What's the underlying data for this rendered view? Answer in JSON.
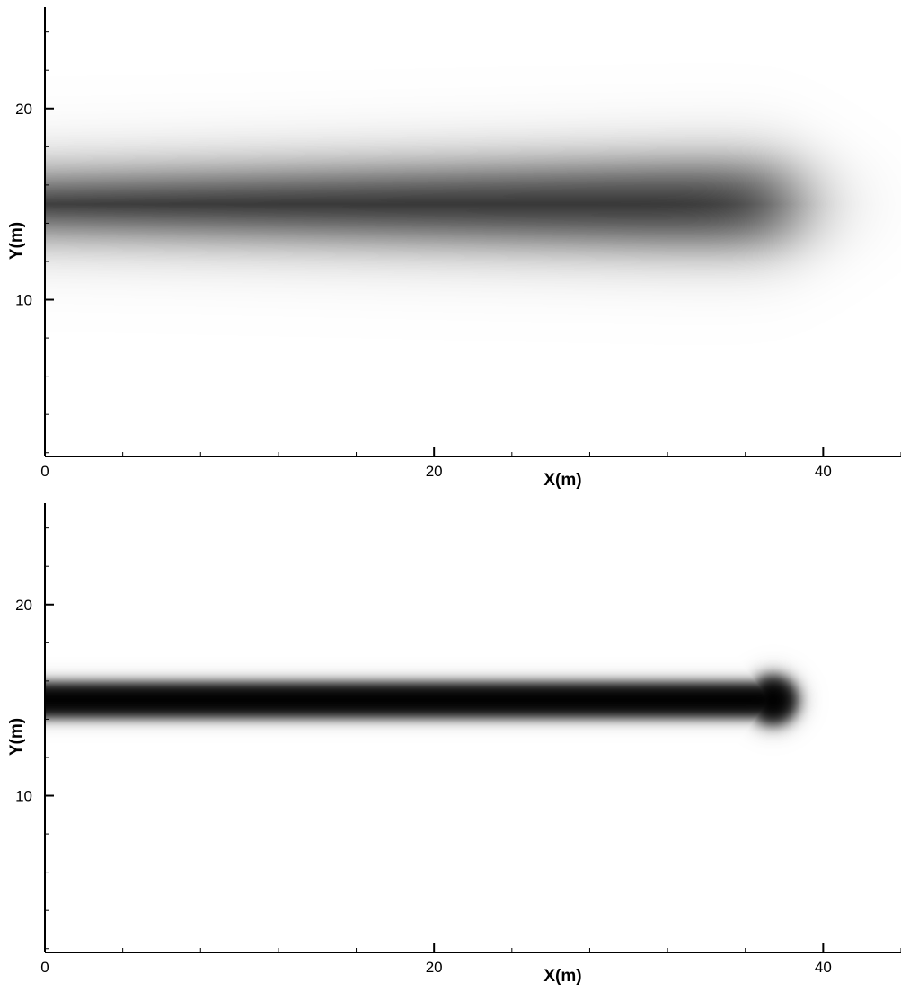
{
  "colors": {
    "background": "#ffffff",
    "axis": "#000000",
    "plume": "#000000"
  },
  "chart_data": [
    {
      "type": "heatmap",
      "colormap": "grayscale",
      "xlabel": "X(m)",
      "ylabel": "Y(m)",
      "xlim": [
        0,
        44
      ],
      "ylim": [
        1.8,
        25.3
      ],
      "x_ticks": [
        0,
        20,
        40
      ],
      "y_ticks": [
        10,
        20
      ],
      "x_tick_labels": [
        "0",
        "20",
        "40"
      ],
      "y_tick_labels": [
        "10",
        "20"
      ],
      "grid": false,
      "plume": {
        "y_center": 15,
        "x_start": 0,
        "x_end": 38.5,
        "halfwidth_start": 1.0,
        "halfwidth_end": 2.0,
        "peak_intensity_start": 1.0,
        "peak_intensity_end": 0.85,
        "front_blur": 1.3,
        "edge_blur": 0.9
      }
    },
    {
      "type": "heatmap",
      "colormap": "grayscale",
      "xlabel": "X(m)",
      "ylabel": "Y(m)",
      "xlim": [
        0,
        44
      ],
      "ylim": [
        1.8,
        25.3
      ],
      "x_ticks": [
        0,
        20,
        40
      ],
      "y_ticks": [
        10,
        20
      ],
      "x_tick_labels": [
        "0",
        "20",
        "40"
      ],
      "y_tick_labels": [
        "10",
        "20"
      ],
      "grid": false,
      "plume": {
        "y_center": 15,
        "x_start": 0,
        "x_end": 38.2,
        "halfwidth_start": 0.95,
        "halfwidth_end": 0.95,
        "peak_intensity_start": 1.0,
        "peak_intensity_end": 1.0,
        "front_blur": 0.25,
        "edge_blur": 0.2,
        "head_radius": 1.3
      }
    }
  ]
}
